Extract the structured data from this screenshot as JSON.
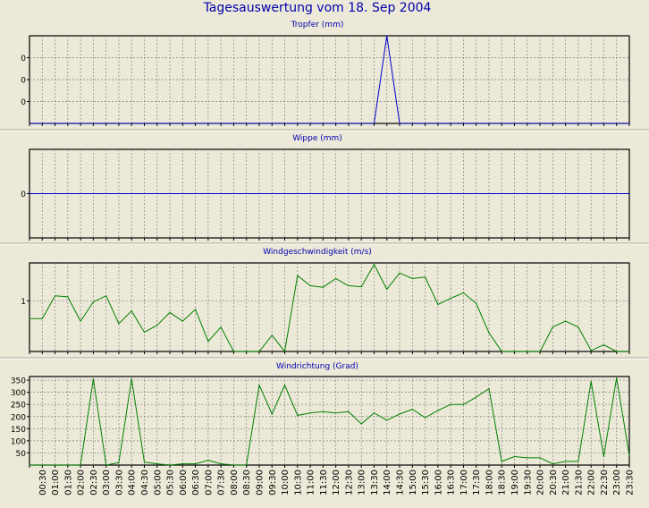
{
  "title": "Tagesauswertung vom 18. Sep 2004",
  "x_tick_labels": [
    "00:30",
    "01:00",
    "01:30",
    "02:00",
    "02:30",
    "03:00",
    "03:30",
    "04:00",
    "04:30",
    "05:00",
    "05:30",
    "06:00",
    "06:30",
    "07:00",
    "07:30",
    "08:00",
    "08:30",
    "09:00",
    "09:30",
    "10:00",
    "10:30",
    "11:00",
    "11:30",
    "12:00",
    "12:30",
    "13:00",
    "13:30",
    "14:00",
    "14:30",
    "15:00",
    "15:30",
    "16:00",
    "16:30",
    "17:00",
    "17:30",
    "18:00",
    "18:30",
    "19:00",
    "19:30",
    "20:00",
    "20:30",
    "21:00",
    "21:30",
    "22:00",
    "22:30",
    "23:00",
    "23:30"
  ],
  "colors": {
    "background": "#ECE9D8",
    "title": "#0000B0",
    "tropfer": "#0000CC",
    "wippe": "#0000CC",
    "wind": "#008000",
    "grid": "#808080"
  },
  "chart_data": [
    {
      "type": "line",
      "title": "Tropfer (mm)",
      "x": [
        "00:00",
        "00:30",
        "01:00",
        "01:30",
        "02:00",
        "02:30",
        "03:00",
        "03:30",
        "04:00",
        "04:30",
        "05:00",
        "05:30",
        "06:00",
        "06:30",
        "07:00",
        "07:30",
        "08:00",
        "08:30",
        "09:00",
        "09:30",
        "10:00",
        "10:30",
        "11:00",
        "11:30",
        "12:00",
        "12:30",
        "13:00",
        "13:30",
        "14:00",
        "14:30",
        "15:00",
        "15:30",
        "16:00",
        "16:30",
        "17:00",
        "17:30",
        "18:00",
        "18:30",
        "19:00",
        "19:30",
        "20:00",
        "20:30",
        "21:00",
        "21:30",
        "22:00",
        "22:30",
        "23:00",
        "23:30"
      ],
      "values": [
        0,
        0,
        0,
        0,
        0,
        0,
        0,
        0,
        0,
        0,
        0,
        0,
        0,
        0,
        0,
        0,
        0,
        0,
        0,
        0,
        0,
        0,
        0,
        0,
        0,
        0,
        0,
        0,
        0.4,
        0,
        0,
        0,
        0,
        0,
        0,
        0,
        0,
        0,
        0,
        0,
        0,
        0,
        0,
        0,
        0,
        0,
        0,
        0
      ],
      "yticks": [
        0.1,
        0.2,
        0.3
      ],
      "ytick_labels": [
        "0",
        "0",
        "0"
      ],
      "ylim": [
        0,
        0.4
      ],
      "grid": true
    },
    {
      "type": "line",
      "title": "Wippe (mm)",
      "x": [
        "00:00",
        "23:30"
      ],
      "values": [
        0,
        0
      ],
      "yticks": [
        0
      ],
      "ytick_labels": [
        "0"
      ],
      "ylim": [
        -1,
        1
      ],
      "grid": true
    },
    {
      "type": "line",
      "title": "Windgeschwindigkeit (m/s)",
      "x": [
        "00:00",
        "00:30",
        "01:00",
        "01:30",
        "02:00",
        "02:30",
        "03:00",
        "03:30",
        "04:00",
        "04:30",
        "05:00",
        "05:30",
        "06:00",
        "06:30",
        "07:00",
        "07:30",
        "08:00",
        "08:30",
        "09:00",
        "09:30",
        "10:00",
        "10:30",
        "11:00",
        "11:30",
        "12:00",
        "12:30",
        "13:00",
        "13:30",
        "14:00",
        "14:30",
        "15:00",
        "15:30",
        "16:00",
        "16:30",
        "17:00",
        "17:30",
        "18:00",
        "18:30",
        "19:00",
        "19:30",
        "20:00",
        "20:30",
        "21:00",
        "21:30",
        "22:00",
        "22:30",
        "23:00",
        "23:30"
      ],
      "values": [
        0.65,
        0.65,
        1.1,
        1.08,
        0.6,
        0.98,
        1.1,
        0.55,
        0.8,
        0.38,
        0.52,
        0.77,
        0.6,
        0.83,
        0.2,
        0.48,
        0,
        0,
        0,
        0.32,
        0,
        1.5,
        1.3,
        1.27,
        1.44,
        1.3,
        1.28,
        1.72,
        1.23,
        1.55,
        1.44,
        1.47,
        0.93,
        1.05,
        1.16,
        0.95,
        0.37,
        0,
        0,
        0,
        0,
        0.48,
        0.6,
        0.48,
        0.02,
        0.13,
        0,
        0
      ],
      "yticks": [
        1
      ],
      "ytick_labels": [
        "1"
      ],
      "ylim": [
        0,
        1.75
      ],
      "grid": true
    },
    {
      "type": "line",
      "title": "Windrichtung (Grad)",
      "x": [
        "00:00",
        "00:30",
        "01:00",
        "01:30",
        "02:00",
        "02:30",
        "03:00",
        "03:30",
        "04:00",
        "04:30",
        "05:00",
        "05:30",
        "06:00",
        "06:30",
        "07:00",
        "07:30",
        "08:00",
        "08:30",
        "09:00",
        "09:30",
        "10:00",
        "10:30",
        "11:00",
        "11:30",
        "12:00",
        "12:30",
        "13:00",
        "13:30",
        "14:00",
        "14:30",
        "15:00",
        "15:30",
        "16:00",
        "16:30",
        "17:00",
        "17:30",
        "18:00",
        "18:30",
        "19:00",
        "19:30",
        "20:00",
        "20:30",
        "21:00",
        "21:30",
        "22:00",
        "22:30",
        "23:00",
        "23:30"
      ],
      "values": [
        0,
        0,
        0,
        0,
        0,
        355,
        0,
        10,
        355,
        12,
        5,
        0,
        5,
        5,
        20,
        5,
        0,
        0,
        330,
        210,
        330,
        205,
        215,
        220,
        215,
        220,
        170,
        215,
        185,
        210,
        230,
        195,
        225,
        250,
        250,
        280,
        315,
        15,
        35,
        30,
        30,
        5,
        15,
        15,
        345,
        35,
        360,
        40
      ],
      "yticks": [
        50,
        100,
        150,
        200,
        250,
        300,
        350
      ],
      "ytick_labels": [
        "50",
        "100",
        "150",
        "200",
        "250",
        "300",
        "350"
      ],
      "ylim": [
        0,
        365
      ],
      "grid": true
    }
  ]
}
